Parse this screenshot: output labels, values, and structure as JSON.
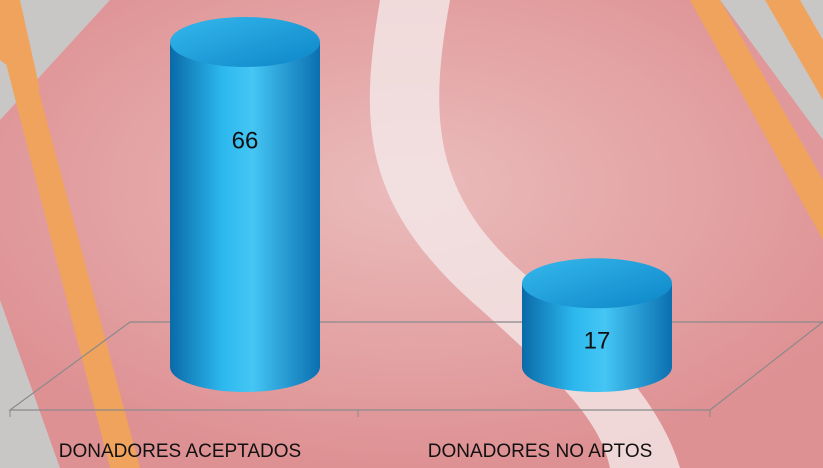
{
  "chart_data": {
    "type": "cylinder",
    "categories": [
      "DONADORES ACEPTADOS",
      "DONADORES NO APTOS"
    ],
    "values": [
      66,
      17
    ],
    "color": "#17a4e4"
  }
}
